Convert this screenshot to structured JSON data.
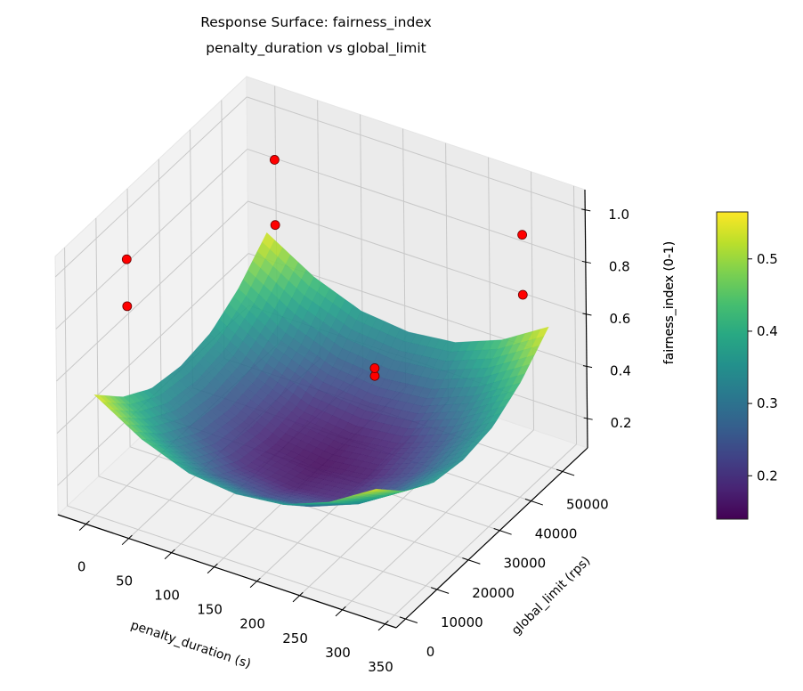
{
  "chart_data": {
    "type": "surface3d",
    "title": "Response Surface: fairness_index",
    "subtitle": "penalty_duration vs global_limit",
    "xlabel": "penalty_duration (s)",
    "ylabel": "global_limit (rps)",
    "zlabel": "fairness_index (0-1)",
    "xlim": [
      -33,
      363
    ],
    "ylim": [
      -3000,
      58000
    ],
    "zlim": [
      0.088,
      1.078
    ],
    "xticks": [
      "0",
      "50",
      "100",
      "150",
      "200",
      "250",
      "300",
      "350"
    ],
    "yticks": [
      "0",
      "10000",
      "20000",
      "30000",
      "40000",
      "50000"
    ],
    "zticks": [
      "0.2",
      "0.4",
      "0.6",
      "0.8",
      "1.0"
    ],
    "grid": true,
    "colormap": "viridis",
    "surface": {
      "x": [
        0,
        55,
        110,
        165,
        220,
        275,
        330
      ],
      "y": [
        0,
        9000,
        18000,
        27500,
        37000,
        46000,
        55000
      ],
      "z": [
        [
          0.55,
          0.44,
          0.37,
          0.35,
          0.37,
          0.44,
          0.55
        ],
        [
          0.44,
          0.33,
          0.26,
          0.24,
          0.26,
          0.33,
          0.44
        ],
        [
          0.37,
          0.26,
          0.19,
          0.17,
          0.19,
          0.26,
          0.37
        ],
        [
          0.35,
          0.24,
          0.17,
          0.15,
          0.17,
          0.24,
          0.35
        ],
        [
          0.37,
          0.26,
          0.19,
          0.17,
          0.19,
          0.26,
          0.37
        ],
        [
          0.44,
          0.33,
          0.26,
          0.24,
          0.26,
          0.33,
          0.44
        ],
        [
          0.55,
          0.44,
          0.37,
          0.35,
          0.37,
          0.44,
          0.55
        ]
      ]
    },
    "points": {
      "color": "#ff0000",
      "x": [
        10,
        10,
        10,
        10,
        300,
        300,
        300,
        300
      ],
      "y": [
        8000,
        8000,
        55000,
        55000,
        55000,
        55000,
        8000,
        8000
      ],
      "z": [
        0.81,
        0.99,
        0.59,
        0.84,
        0.64,
        0.87,
        0.86,
        0.89
      ]
    },
    "colorbar": {
      "label": "fairness_index (0-1)",
      "range": [
        0.14,
        0.565
      ],
      "ticks": [
        "0.2",
        "0.3",
        "0.4",
        "0.5"
      ]
    }
  }
}
